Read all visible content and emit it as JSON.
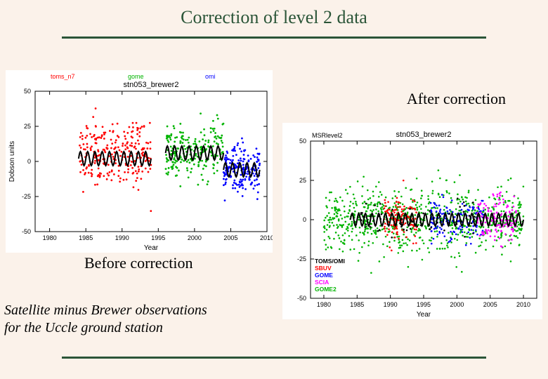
{
  "title": "Correction of level 2 data",
  "label_after": "After correction",
  "label_before": "Before correction",
  "caption_l1": "Satellite minus Brewer observations",
  "caption_l2": "for the Uccle ground station",
  "colors": {
    "bg": "#fbf2ea",
    "rule": "#2b5538",
    "axis": "#000000",
    "fit": "#000000"
  },
  "left_chart": {
    "type": "scatter",
    "title": "stn053_brewer2",
    "xlabel": "Year",
    "ylabel": "Dobson units",
    "xlim": [
      1978,
      2010
    ],
    "ylim": [
      -50,
      50
    ],
    "xticks": [
      1980,
      1985,
      1990,
      1995,
      2000,
      2005,
      2010
    ],
    "yticks": [
      -50,
      -25,
      0,
      25,
      50
    ],
    "title_fontsize": 11,
    "axis_fontsize": 10,
    "tick_fontsize": 9,
    "marker_size": 1.4,
    "grid": false,
    "legend": [
      {
        "label": "toms_n7",
        "color": "#ff0000"
      },
      {
        "label": "gome",
        "color": "#00b400"
      },
      {
        "label": "omi",
        "color": "#0000ff"
      }
    ],
    "series": [
      {
        "color": "#ff0000",
        "x_range": [
          1984,
          1994
        ],
        "mean": 5,
        "spread": 22,
        "n": 260
      },
      {
        "color": "#00b400",
        "x_range": [
          1996,
          2004
        ],
        "mean": 7,
        "spread": 20,
        "n": 220
      },
      {
        "color": "#0000ff",
        "x_range": [
          2004,
          2009
        ],
        "mean": -6,
        "spread": 18,
        "n": 200
      }
    ],
    "fit": {
      "segments": [
        {
          "x_range": [
            1984,
            1994
          ],
          "mean": 2,
          "amp": 5,
          "period": 1,
          "color": "#000000",
          "width": 2
        },
        {
          "x_range": [
            1996,
            2004
          ],
          "mean": 6,
          "amp": 5,
          "period": 1,
          "color": "#000000",
          "width": 2
        },
        {
          "x_range": [
            2004,
            2009
          ],
          "mean": -6,
          "amp": 5,
          "period": 1,
          "color": "#000000",
          "width": 2
        }
      ]
    }
  },
  "right_chart": {
    "type": "scatter",
    "title": "stn053_brewer2",
    "toplabel": "MSRlevel2",
    "xlabel": "Year",
    "xlim": [
      1978,
      2012
    ],
    "ylim": [
      -50,
      50
    ],
    "xticks": [
      1980,
      1985,
      1990,
      1995,
      2000,
      2005,
      2010
    ],
    "yticks": [
      -50,
      -25,
      0,
      25,
      50
    ],
    "title_fontsize": 11,
    "axis_fontsize": 10,
    "tick_fontsize": 9,
    "marker_size": 1.3,
    "grid": false,
    "legend": [
      {
        "label": "TOMS/OMI",
        "color": "#000000"
      },
      {
        "label": "SBUV",
        "color": "#ff0000"
      },
      {
        "label": "GOME",
        "color": "#0000ff"
      },
      {
        "label": "SCIA",
        "color": "#ff00ff"
      },
      {
        "label": "GOME2",
        "color": "#00b400"
      }
    ],
    "series": [
      {
        "color": "#00b400",
        "x_range": [
          1980,
          2010
        ],
        "mean": 0,
        "spread": 20,
        "n": 800
      },
      {
        "color": "#ff0000",
        "x_range": [
          1989,
          1994
        ],
        "mean": 0,
        "spread": 14,
        "n": 120
      },
      {
        "color": "#0000ff",
        "x_range": [
          1996,
          2004
        ],
        "mean": 0,
        "spread": 14,
        "n": 140
      },
      {
        "color": "#ff00ff",
        "x_range": [
          2003,
          2009
        ],
        "mean": 0,
        "spread": 14,
        "n": 140
      },
      {
        "color": "#000000",
        "x_range": [
          1984,
          2004
        ],
        "mean": 0,
        "spread": 12,
        "n": 60
      }
    ],
    "fit": {
      "x_range": [
        1984,
        2010
      ],
      "mean": 0,
      "amp": 4,
      "period": 1,
      "color": "#000000",
      "width": 2
    }
  }
}
